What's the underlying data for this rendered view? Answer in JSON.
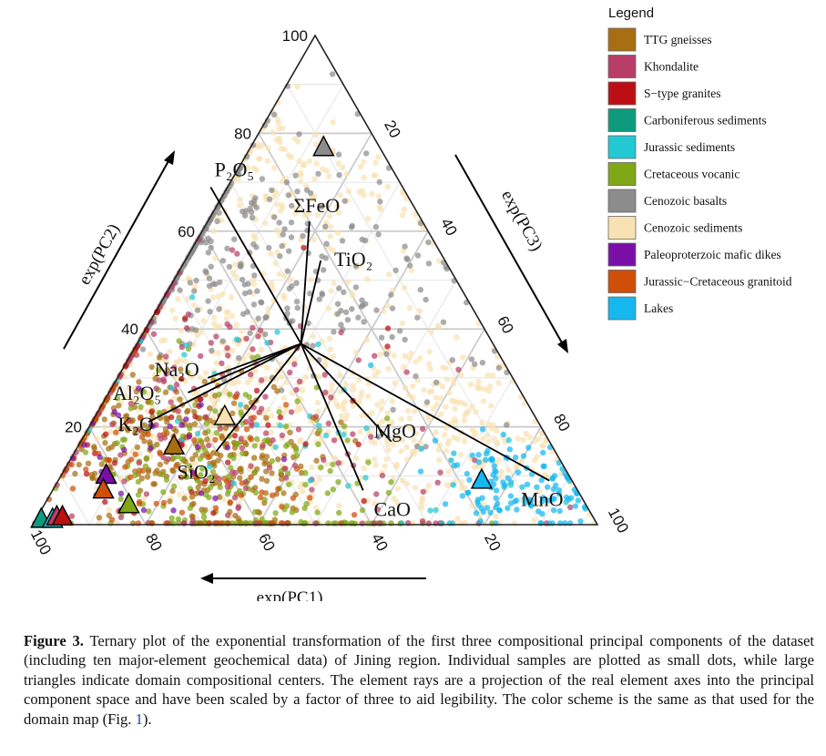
{
  "figure": {
    "axis_names": {
      "left": "exp(PC2)",
      "right": "exp(PC3)",
      "bottom": "exp(PC1)"
    },
    "ticks": {
      "left": [
        "100",
        "80",
        "60",
        "40",
        "20"
      ],
      "right": [
        "20",
        "40",
        "60",
        "80",
        "100"
      ],
      "bottom": [
        "100",
        "80",
        "60",
        "40",
        "20"
      ]
    },
    "legend": {
      "title": "Legend",
      "items": [
        {
          "label": "TTG gneisses",
          "color": "#a86f12"
        },
        {
          "label": "Khondalite",
          "color": "#b83e67"
        },
        {
          "label": "S−type granites",
          "color": "#bb0f14"
        },
        {
          "label": "Carboniferous sediments",
          "color": "#0e9b7d"
        },
        {
          "label": "Jurassic sediments",
          "color": "#22c8d2"
        },
        {
          "label": "Cretaceous vocanic",
          "color": "#7fa716"
        },
        {
          "label": "Cenozoic basalts",
          "color": "#8c8c8c"
        },
        {
          "label": "Cenozoic sediments",
          "color": "#f8e2b2"
        },
        {
          "label": "Paleoproterzoic mafic dikes",
          "color": "#7a0fa8"
        },
        {
          "label": "Jurassic−Cretaceous granitoid",
          "color": "#cf4e08"
        },
        {
          "label": "Lakes",
          "color": "#15b8ee"
        }
      ]
    },
    "rays": [
      "P₂O₅",
      "ΣFeO",
      "TiO₂",
      "Na₂O",
      "Al₂O₅",
      "K₂O",
      "SiO₂",
      "MgO",
      "CaO",
      "MnO"
    ]
  },
  "chart_data": {
    "type": "scatter",
    "subtype": "ternary",
    "axes": [
      "exp(PC1)",
      "exp(PC2)",
      "exp(PC3)"
    ],
    "axis_range": [
      0,
      100
    ],
    "grid": true,
    "legend_placement": "top-right",
    "centers": [
      {
        "group": "Cenozoic basalts",
        "pc1": 10,
        "pc2": 77,
        "pc3": 13
      },
      {
        "group": "Cenozoic sediments",
        "pc1": 55,
        "pc2": 22,
        "pc3": 23
      },
      {
        "group": "TTG gneisses",
        "pc1": 67,
        "pc2": 16,
        "pc3": 17
      },
      {
        "group": "Paleoproterzoic mafic dikes",
        "pc1": 82,
        "pc2": 10,
        "pc3": 8
      },
      {
        "group": "Jurassic−Cretaceous granitoid",
        "pc1": 84,
        "pc2": 7,
        "pc3": 9
      },
      {
        "group": "Cretaceous vocanic",
        "pc1": 81,
        "pc2": 4,
        "pc3": 15
      },
      {
        "group": "Lakes",
        "pc1": 16,
        "pc2": 9,
        "pc3": 75
      },
      {
        "group": "Carboniferous sediments",
        "pc1": 98,
        "pc2": 1,
        "pc3": 1
      },
      {
        "group": "Jurassic sediments",
        "pc1": 96,
        "pc2": 1,
        "pc3": 3
      },
      {
        "group": "Khondalite",
        "pc1": 95,
        "pc2": 1.5,
        "pc3": 3.5
      },
      {
        "group": "S−type granites",
        "pc1": 94,
        "pc2": 1.5,
        "pc3": 4.5
      }
    ],
    "rays": [
      {
        "label": "P₂O₅",
        "pc1": 34,
        "pc2": 69,
        "pc3": -3
      },
      {
        "label": "ΣFeO",
        "pc1": 20,
        "pc2": 62,
        "pc3": 18
      },
      {
        "label": "TiO₂",
        "pc1": 22,
        "pc2": 54,
        "pc3": 24
      },
      {
        "label": "Na₂O",
        "pc1": 54,
        "pc2": 30,
        "pc3": 16
      },
      {
        "label": "Al₂O₅",
        "pc1": 59,
        "pc2": 27,
        "pc3": 14
      },
      {
        "label": "K₂O",
        "pc1": 69,
        "pc2": 21,
        "pc3": 10
      },
      {
        "label": "SiO₂",
        "pc1": 60,
        "pc2": 15,
        "pc3": 25
      },
      {
        "label": "MgO",
        "pc1": 28,
        "pc2": 17,
        "pc3": 55
      },
      {
        "label": "CaO",
        "pc1": 38,
        "pc2": 7,
        "pc3": 55
      },
      {
        "label": "MnO",
        "pc1": 4,
        "pc2": 9,
        "pc3": 87
      }
    ],
    "ray_origin": {
      "pc1": 34,
      "pc2": 37,
      "pc3": 29
    }
  },
  "caption": {
    "label": "Figure 3.",
    "text_before": " Ternary plot of the exponential transformation of the first three compositional principal components of the dataset (including ten major-element geochemical data) of Jining region. Individual samples are plotted as small dots, while large triangles indicate domain compositional centers. The element rays are a projection of the real element axes into the principal component space and have been scaled by a factor of three to aid legibility. The color scheme is the same as that used for the domain map (Fig. ",
    "figref": "1",
    "text_after": ")."
  }
}
